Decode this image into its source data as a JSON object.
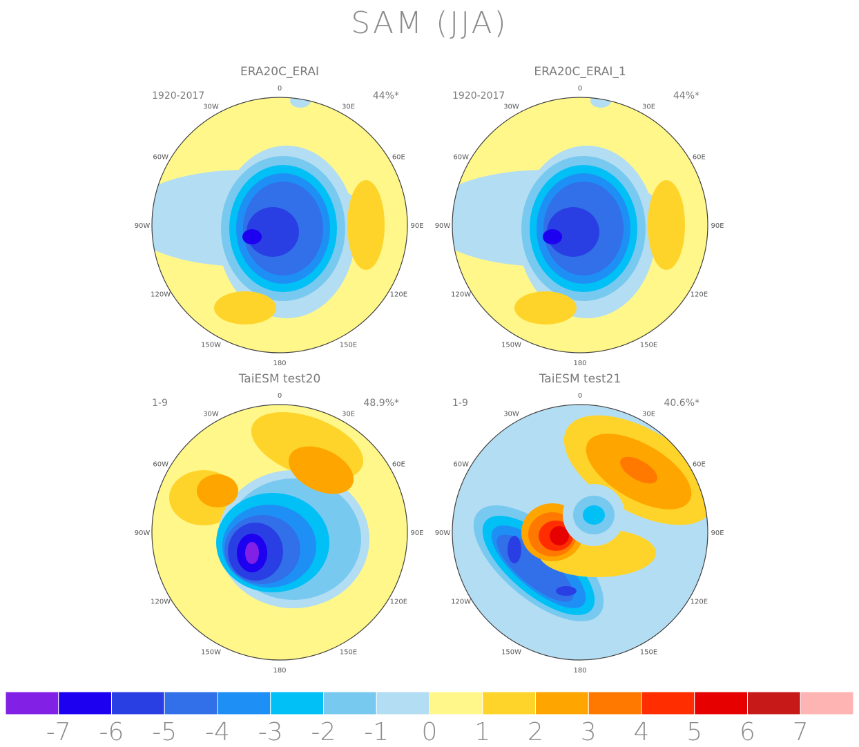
{
  "title": "SAM (JJA)",
  "lon_labels": [
    "0",
    "30E",
    "60E",
    "90E",
    "120E",
    "150E",
    "180",
    "150W",
    "120W",
    "90W",
    "60W",
    "30W"
  ],
  "panels": [
    {
      "name": "ERA20C_ERAI",
      "period": "1920-2017",
      "variance": "44%*"
    },
    {
      "name": "ERA20C_ERAI_1",
      "period": "1920-2017",
      "variance": "44%*"
    },
    {
      "name": "TaiESM test20",
      "period": "1-9",
      "variance": "48.9%*"
    },
    {
      "name": "TaiESM test21",
      "period": "1-9",
      "variance": "40.6%*"
    }
  ],
  "colorbar": {
    "labels": [
      "-7",
      "-6",
      "-5",
      "-4",
      "-3",
      "-2",
      "-1",
      "0",
      "1",
      "2",
      "3",
      "4",
      "5",
      "6",
      "7"
    ],
    "colors": [
      "#8320e6",
      "#1e00f0",
      "#2a3fe3",
      "#3170e8",
      "#1e90f5",
      "#00c0f5",
      "#78c9f0",
      "#b3ddf2",
      "#fff78a",
      "#ffd42a",
      "#ffa500",
      "#ff7800",
      "#ff2d00",
      "#e60000",
      "#c81919",
      "#ffb4b4"
    ]
  },
  "palette": {
    "land": "#808080",
    "frame": "#404040",
    "text": "#7a7a7a"
  }
}
